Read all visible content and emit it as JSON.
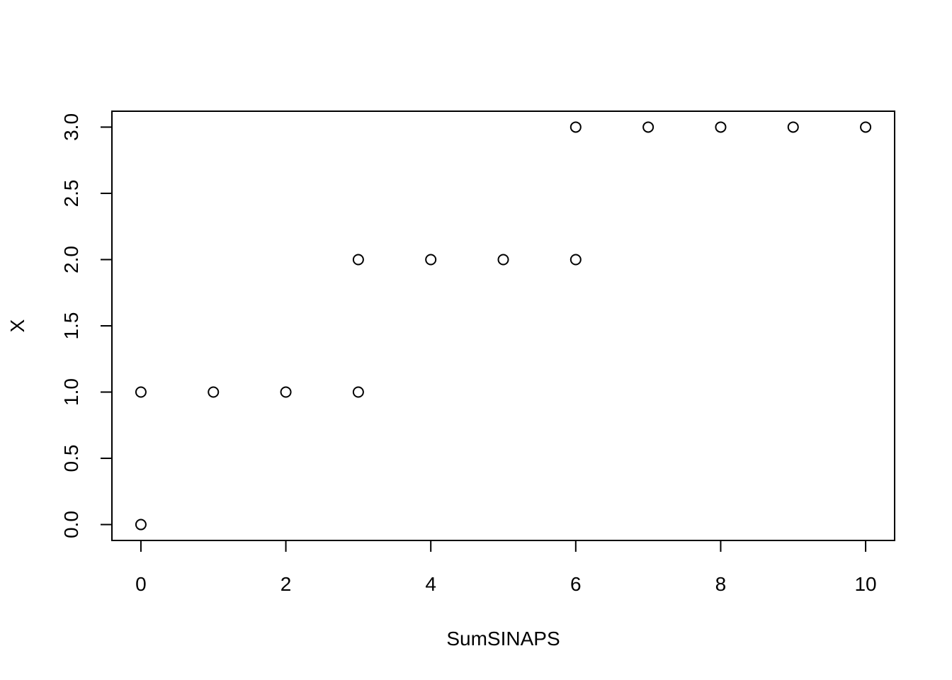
{
  "chart_data": {
    "type": "scatter",
    "title": "",
    "xlabel": "SumSINAPS",
    "ylabel": "X",
    "xlim": [
      -0.4,
      10.4
    ],
    "ylim": [
      -0.12,
      3.12
    ],
    "xticks": [
      0,
      2,
      4,
      6,
      8,
      10
    ],
    "xtick_labels": [
      "0",
      "2",
      "4",
      "6",
      "8",
      "10"
    ],
    "yticks": [
      0,
      0.5,
      1,
      1.5,
      2,
      2.5,
      3
    ],
    "ytick_labels": [
      "0.0",
      "0.5",
      "1.0",
      "1.5",
      "2.0",
      "2.5",
      "3.0"
    ],
    "grid": false,
    "legend": "none",
    "marker": "open-circle",
    "colors": {
      "marker": "#000000",
      "axis": "#000000",
      "background": "#ffffff"
    },
    "points": [
      {
        "x": 0,
        "y": 0
      },
      {
        "x": 0,
        "y": 1
      },
      {
        "x": 1,
        "y": 1
      },
      {
        "x": 2,
        "y": 1
      },
      {
        "x": 3,
        "y": 1
      },
      {
        "x": 3,
        "y": 2
      },
      {
        "x": 4,
        "y": 2
      },
      {
        "x": 5,
        "y": 2
      },
      {
        "x": 6,
        "y": 2
      },
      {
        "x": 6,
        "y": 3
      },
      {
        "x": 7,
        "y": 3
      },
      {
        "x": 8,
        "y": 3
      },
      {
        "x": 9,
        "y": 3
      },
      {
        "x": 10,
        "y": 3
      }
    ]
  }
}
